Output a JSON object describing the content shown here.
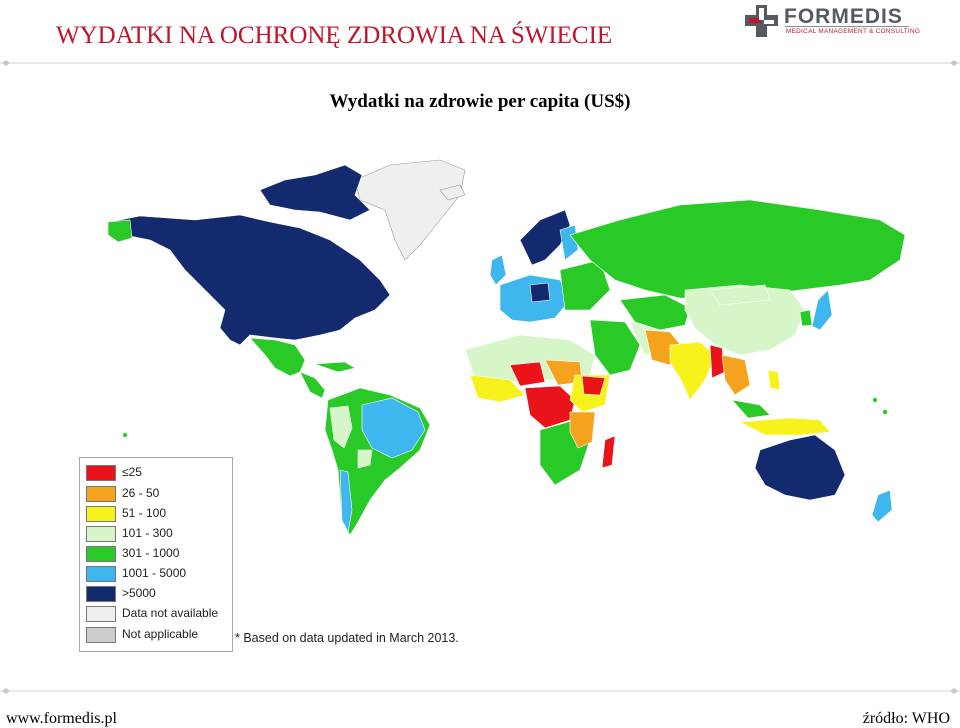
{
  "slide": {
    "title": "WYDATKI NA OCHRONĘ ZDROWIA NA ŚWIECIE",
    "accent_color": "#c0142a"
  },
  "logo": {
    "name": "FORMEDIS",
    "tagline": "MEDICAL MANAGEMENT & CONSULTING",
    "icon": "cross-icon"
  },
  "map": {
    "title": "Wydatki na zdrowie per capita (US$)",
    "legend": [
      {
        "label": "≤25",
        "color": "#e8141a"
      },
      {
        "label": "26 - 50",
        "color": "#f5a21e"
      },
      {
        "label": "51 - 100",
        "color": "#f8f21c"
      },
      {
        "label": "101 - 300",
        "color": "#d6f5c8"
      },
      {
        "label": "301 - 1000",
        "color": "#29c928"
      },
      {
        "label": "1001 - 5000",
        "color": "#3eb6ee"
      },
      {
        "label": ">5000",
        "color": "#132a6e"
      },
      {
        "label": "Data not available",
        "color": "#efefef"
      },
      {
        "label": "Not applicable",
        "color": "#cccccc"
      }
    ],
    "footnote": "* Based on data updated in March 2013."
  },
  "footer": {
    "website": "www.formedis.pl",
    "source": "źródło: WHO"
  }
}
